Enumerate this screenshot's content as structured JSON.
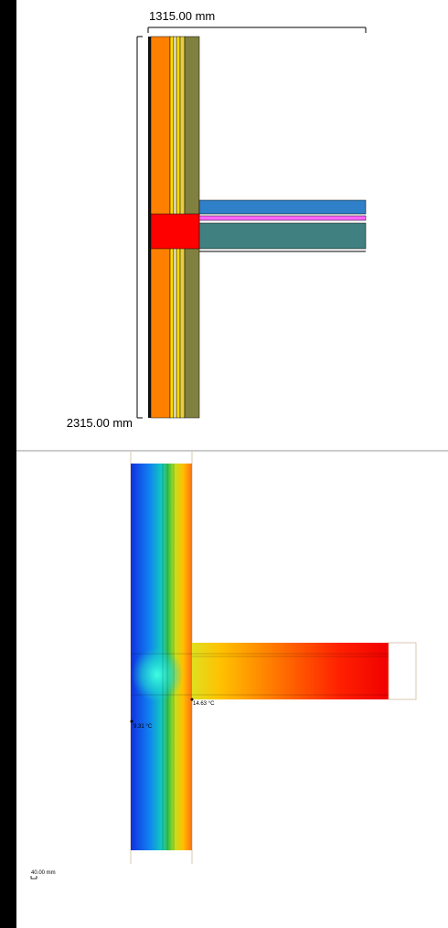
{
  "construction_view": {
    "width_dimension": "1315.00 mm",
    "height_dimension": "2315.00 mm"
  },
  "thermal_view": {
    "probes": [
      {
        "label": "14.63 °C"
      },
      {
        "label": "9.31 °C"
      }
    ],
    "scale_bar": "40.00 mm"
  }
}
